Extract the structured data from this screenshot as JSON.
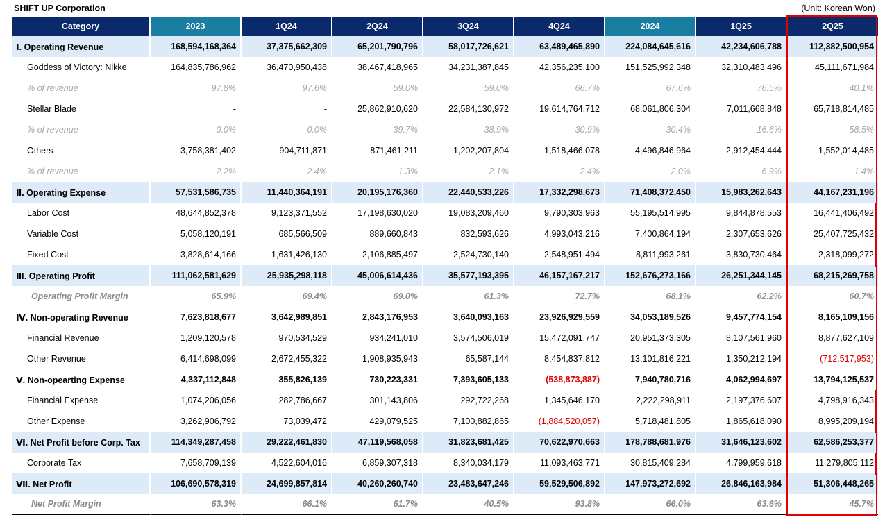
{
  "header": {
    "company": "SHIFT UP Corporation",
    "unit": "(Unit: Korean Won)"
  },
  "columns": [
    "Category",
    "2023",
    "1Q24",
    "2Q24",
    "3Q24",
    "4Q24",
    "2024",
    "1Q25",
    "2Q25"
  ],
  "rows": [
    {
      "label": "Ⅰ. Operating Revenue",
      "values": [
        "168,594,168,364",
        "37,375,662,309",
        "65,201,790,796",
        "58,017,726,621",
        "63,489,465,890",
        "224,084,645,616",
        "42,234,606,788",
        "112,382,500,954"
      ]
    },
    {
      "label": "Goddess of Victory: Nikke",
      "values": [
        "164,835,786,962",
        "36,470,950,438",
        "38,467,418,965",
        "34,231,387,845",
        "42,356,235,100",
        "151,525,992,348",
        "32,310,483,496",
        "45,111,671,984"
      ]
    },
    {
      "label": "% of revenue",
      "values": [
        "97.8%",
        "97.6%",
        "59.0%",
        "59.0%",
        "66.7%",
        "67.6%",
        "76.5%",
        "40.1%"
      ]
    },
    {
      "label": "Stellar Blade",
      "values": [
        "-",
        "-",
        "25,862,910,620",
        "22,584,130,972",
        "19,614,764,712",
        "68,061,806,304",
        "7,011,668,848",
        "65,718,814,485"
      ]
    },
    {
      "label": "% of revenue",
      "values": [
        "0.0%",
        "0.0%",
        "39.7%",
        "38.9%",
        "30.9%",
        "30.4%",
        "16.6%",
        "58.5%"
      ]
    },
    {
      "label": "Others",
      "values": [
        "3,758,381,402",
        "904,711,871",
        "871,461,211",
        "1,202,207,804",
        "1,518,466,078",
        "4,496,846,964",
        "2,912,454,444",
        "1,552,014,485"
      ]
    },
    {
      "label": "% of revenue",
      "values": [
        "2.2%",
        "2.4%",
        "1.3%",
        "2.1%",
        "2.4%",
        "2.0%",
        "6.9%",
        "1.4%"
      ]
    },
    {
      "label": "Ⅱ. Operating Expense",
      "values": [
        "57,531,586,735",
        "11,440,364,191",
        "20,195,176,360",
        "22,440,533,226",
        "17,332,298,673",
        "71,408,372,450",
        "15,983,262,643",
        "44,167,231,196"
      ]
    },
    {
      "label": "Labor Cost",
      "values": [
        "48,644,852,378",
        "9,123,371,552",
        "17,198,630,020",
        "19,083,209,460",
        "9,790,303,963",
        "55,195,514,995",
        "9,844,878,553",
        "16,441,406,492"
      ]
    },
    {
      "label": "Variable Cost",
      "values": [
        "5,058,120,191",
        "685,566,509",
        "889,660,843",
        "832,593,626",
        "4,993,043,216",
        "7,400,864,194",
        "2,307,653,626",
        "25,407,725,432"
      ]
    },
    {
      "label": "Fixed Cost",
      "values": [
        "3,828,614,166",
        "1,631,426,130",
        "2,106,885,497",
        "2,524,730,140",
        "2,548,951,494",
        "8,811,993,261",
        "3,830,730,464",
        "2,318,099,272"
      ]
    },
    {
      "label": "Ⅲ. Operating Profit",
      "values": [
        "111,062,581,629",
        "25,935,298,118",
        "45,006,614,436",
        "35,577,193,395",
        "46,157,167,217",
        "152,676,273,166",
        "26,251,344,145",
        "68,215,269,758"
      ]
    },
    {
      "label": "Operating Profit Margin",
      "values": [
        "65.9%",
        "69.4%",
        "69.0%",
        "61.3%",
        "72.7%",
        "68.1%",
        "62.2%",
        "60.7%"
      ]
    },
    {
      "label": "Ⅳ. Non-operating Revenue",
      "values": [
        "7,623,818,677",
        "3,642,989,851",
        "2,843,176,953",
        "3,640,093,163",
        "23,926,929,559",
        "34,053,189,526",
        "9,457,774,154",
        "8,165,109,156"
      ]
    },
    {
      "label": "Financial Revenue",
      "values": [
        "1,209,120,578",
        "970,534,529",
        "934,241,010",
        "3,574,506,019",
        "15,472,091,747",
        "20,951,373,305",
        "8,107,561,960",
        "8,877,627,109"
      ]
    },
    {
      "label": "Other Revenue",
      "values": [
        "6,414,698,099",
        "2,672,455,322",
        "1,908,935,943",
        "65,587,144",
        "8,454,837,812",
        "13,101,816,221",
        "1,350,212,194",
        "(712,517,953)"
      ]
    },
    {
      "label": "Ⅴ. Non-opearting Expense",
      "values": [
        "4,337,112,848",
        "355,826,139",
        "730,223,331",
        "7,393,605,133",
        "(538,873,887)",
        "7,940,780,716",
        "4,062,994,697",
        "13,794,125,537"
      ]
    },
    {
      "label": "Financial Expense",
      "values": [
        "1,074,206,056",
        "282,786,667",
        "301,143,806",
        "292,722,268",
        "1,345,646,170",
        "2,222,298,911",
        "2,197,376,607",
        "4,798,916,343"
      ]
    },
    {
      "label": "Other Expense",
      "values": [
        "3,262,906,792",
        "73,039,472",
        "429,079,525",
        "7,100,882,865",
        "(1,884,520,057)",
        "5,718,481,805",
        "1,865,618,090",
        "8,995,209,194"
      ]
    },
    {
      "label": "Ⅵ. Net Profit before Corp. Tax",
      "values": [
        "114,349,287,458",
        "29,222,461,830",
        "47,119,568,058",
        "31,823,681,425",
        "70,622,970,663",
        "178,788,681,976",
        "31,646,123,602",
        "62,586,253,377"
      ]
    },
    {
      "label": "Corporate Tax",
      "values": [
        "7,658,709,139",
        "4,522,604,016",
        "6,859,307,318",
        "8,340,034,179",
        "11,093,463,771",
        "30,815,409,284",
        "4,799,959,618",
        "11,279,805,112"
      ]
    },
    {
      "label": "Ⅶ. Net Profit",
      "values": [
        "106,690,578,319",
        "24,699,857,814",
        "40,260,260,740",
        "23,483,647,246",
        "59,529,506,892",
        "147,973,272,692",
        "26,846,163,984",
        "51,306,448,265"
      ]
    },
    {
      "label": "Net Profit Margin",
      "values": [
        "63.3%",
        "66.1%",
        "61.7%",
        "40.5%",
        "93.8%",
        "66.0%",
        "63.6%",
        "45.7%"
      ]
    }
  ]
}
